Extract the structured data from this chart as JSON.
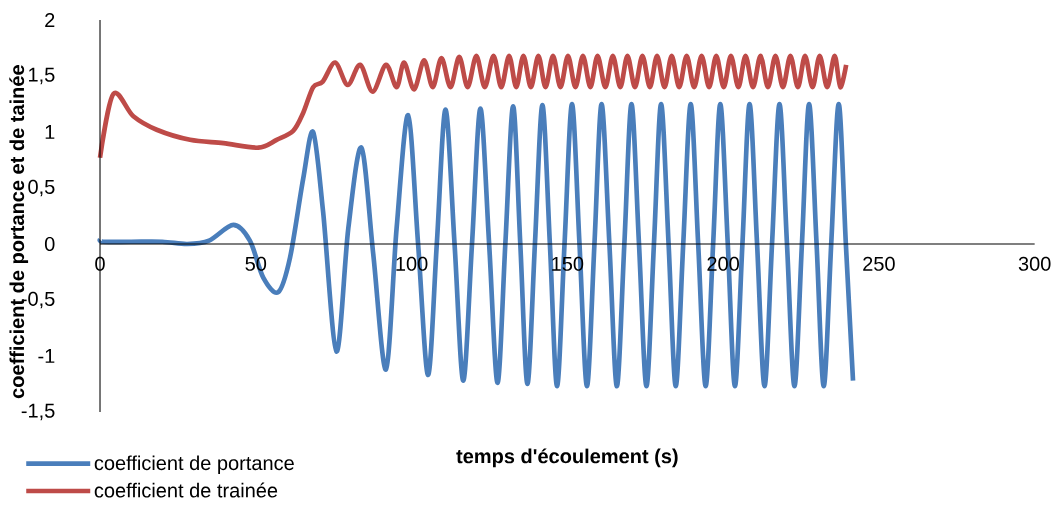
{
  "chart_data": {
    "type": "line",
    "xlabel": "temps d'écoulement (s)",
    "ylabel": "coefficient de portance et de tainée",
    "xlim": [
      0,
      300
    ],
    "ylim": [
      -1.5,
      2
    ],
    "xticks": [
      0,
      50,
      100,
      150,
      200,
      250,
      300
    ],
    "yticks": [
      {
        "value": -1.5,
        "label": "-1,5"
      },
      {
        "value": -1,
        "label": "-1"
      },
      {
        "value": -0.5,
        "label": "-0,5"
      },
      0,
      {
        "value": 0.5,
        "label": "0,5"
      },
      1,
      {
        "value": 1.5,
        "label": "1,5"
      },
      2
    ],
    "legend": "bottom left",
    "series": [
      {
        "name": "coefficient de portance",
        "color": "#4a7ebb",
        "x": [
          0,
          1,
          10,
          20,
          28,
          35,
          42.8,
          48.1,
          52.4,
          57.2,
          61,
          65.2,
          68.4,
          71.6,
          75.9,
          79.7,
          83.9,
          87.7,
          91.8,
          95.2,
          98.9,
          102.1,
          105.3,
          108.1,
          110.9,
          113.8,
          116.6,
          119.4,
          122.1,
          124.9,
          127.6,
          130.1,
          132.6,
          134.9,
          137.2,
          139.6,
          142,
          144.4,
          146.7,
          149.1,
          151.5,
          153.9,
          156.3,
          158.7,
          161,
          163.5,
          165.9,
          168.3,
          170.6,
          173,
          175.4,
          177.8,
          180.1,
          182.5,
          184.8,
          187.2,
          189.6,
          192,
          194.4,
          196.8,
          199.1,
          201.5,
          203.8,
          206.2,
          208.5,
          210.9,
          213.3,
          215.7,
          218.1,
          220.5,
          222.9,
          225.3,
          227.6,
          230,
          232.3,
          234.7,
          237.1,
          239.4,
          241.7
        ],
        "values": [
          0.04,
          0.02,
          0.02,
          0.02,
          0,
          0.03,
          0.17,
          0.03,
          -0.3,
          -0.43,
          -0.12,
          0.58,
          1.0,
          0.29,
          -0.96,
          0.14,
          0.86,
          -0.09,
          -1.12,
          0.14,
          1.15,
          0,
          -1.17,
          0,
          1.2,
          0,
          -1.22,
          0,
          1.21,
          0,
          -1.24,
          0,
          1.23,
          0,
          -1.25,
          0,
          1.24,
          0,
          -1.27,
          0,
          1.25,
          0,
          -1.27,
          0,
          1.25,
          0,
          -1.27,
          0,
          1.25,
          0,
          -1.27,
          0,
          1.25,
          0,
          -1.27,
          0,
          1.25,
          0,
          -1.27,
          0,
          1.25,
          0,
          -1.27,
          0,
          1.25,
          0,
          -1.27,
          0,
          1.25,
          0,
          -1.27,
          0,
          1.25,
          0,
          -1.27,
          0,
          1.25,
          0,
          -1.22
        ]
      },
      {
        "name": "coefficient de trainée",
        "color": "#be4b48",
        "x": [
          0,
          4.3,
          10.7,
          18.2,
          28.9,
          39.6,
          50.8,
          56.7,
          62,
          65.2,
          68.4,
          71.5,
          75.5,
          79.5,
          83.5,
          87.5,
          91.8,
          95.2,
          97.6,
          100.8,
          104,
          106.8,
          109.6,
          112.5,
          115.3,
          118,
          120.8,
          123.5,
          126.3,
          128.8,
          131.3,
          133.6,
          135.9,
          138.3,
          140.7,
          143,
          145.4,
          147.8,
          150.2,
          152.6,
          155,
          157.4,
          159.7,
          162.2,
          164.6,
          167,
          169.3,
          171.7,
          174.1,
          176.5,
          178.8,
          181.2,
          183.5,
          185.9,
          188.3,
          190.7,
          193.1,
          195.5,
          197.8,
          200.2,
          202.5,
          204.9,
          207.2,
          209.6,
          212,
          214.4,
          216.8,
          219.2,
          221.6,
          224,
          226.3,
          228.7,
          231,
          233.4,
          235.8,
          237.6,
          239.5
        ],
        "values": [
          0.77,
          1.34,
          1.14,
          1.02,
          0.93,
          0.9,
          0.86,
          0.93,
          1.01,
          1.17,
          1.4,
          1.45,
          1.62,
          1.42,
          1.6,
          1.36,
          1.6,
          1.4,
          1.62,
          1.38,
          1.64,
          1.4,
          1.66,
          1.4,
          1.67,
          1.4,
          1.68,
          1.4,
          1.68,
          1.4,
          1.68,
          1.4,
          1.68,
          1.4,
          1.68,
          1.4,
          1.68,
          1.4,
          1.68,
          1.4,
          1.68,
          1.4,
          1.68,
          1.4,
          1.68,
          1.4,
          1.68,
          1.4,
          1.68,
          1.4,
          1.68,
          1.4,
          1.68,
          1.4,
          1.68,
          1.4,
          1.68,
          1.4,
          1.68,
          1.4,
          1.68,
          1.4,
          1.68,
          1.4,
          1.68,
          1.4,
          1.68,
          1.4,
          1.68,
          1.4,
          1.68,
          1.4,
          1.68,
          1.4,
          1.68,
          1.4,
          1.6
        ]
      }
    ]
  }
}
